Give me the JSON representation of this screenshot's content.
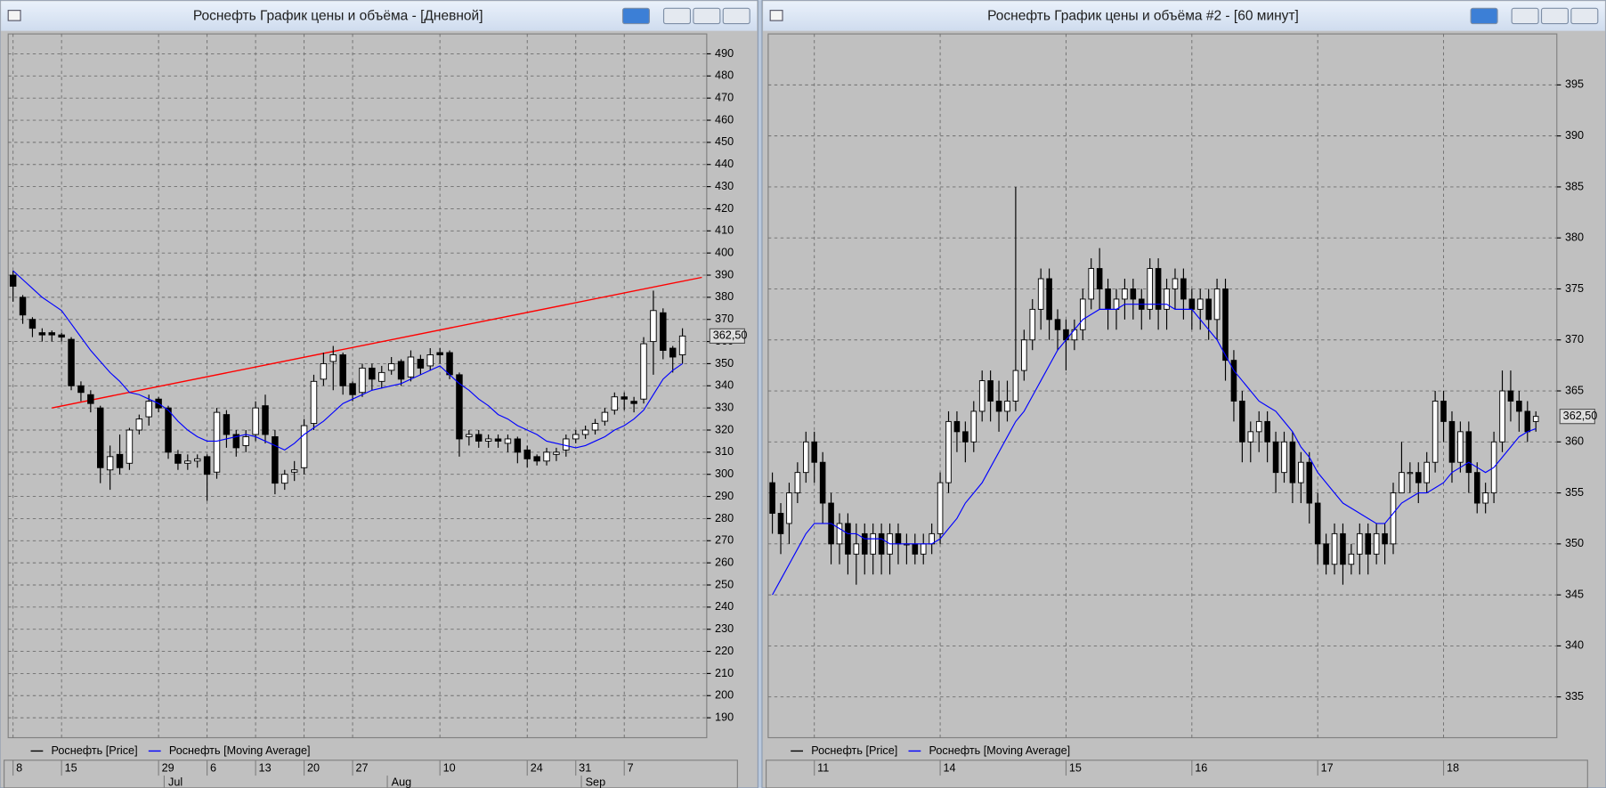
{
  "chart_data": [
    {
      "type": "candlestick",
      "title": "Роснефть График цены и объёма - [Дневной]",
      "categories": [
        "8",
        null,
        null,
        null,
        null,
        "15",
        null,
        null,
        null,
        null,
        null,
        null,
        null,
        null,
        null,
        "29",
        null,
        null,
        null,
        null,
        "6",
        null,
        null,
        null,
        null,
        "13",
        null,
        null,
        null,
        null,
        "20",
        null,
        null,
        null,
        null,
        "27",
        null,
        null,
        null,
        null,
        null,
        null,
        null,
        null,
        "10",
        null,
        null,
        null,
        null,
        null,
        null,
        null,
        null,
        "24",
        null,
        null,
        null,
        null,
        "31",
        null,
        null,
        null,
        null,
        "7",
        null,
        null,
        null,
        null,
        null,
        null
      ],
      "month_categories": [
        null,
        null,
        null,
        null,
        null,
        null,
        null,
        null,
        null,
        null,
        null,
        null,
        null,
        null,
        null,
        null,
        "Jul",
        null,
        null,
        null,
        null,
        null,
        null,
        null,
        null,
        null,
        null,
        null,
        null,
        null,
        null,
        null,
        null,
        null,
        null,
        null,
        null,
        null,
        null,
        "Aug",
        null,
        null,
        null,
        null,
        null,
        null,
        null,
        null,
        null,
        null,
        null,
        null,
        null,
        null,
        null,
        null,
        null,
        null,
        null,
        "Sep",
        null,
        null,
        null,
        null,
        null,
        null,
        null,
        null,
        null,
        null
      ],
      "series": [
        {
          "name": "Роснефть [Price]",
          "color": "#000000",
          "open": [
            390,
            380,
            370,
            364,
            364,
            363,
            361,
            340,
            336,
            330,
            302,
            309,
            305,
            320,
            326,
            334,
            330,
            309,
            305,
            306,
            308,
            301,
            327,
            318,
            313,
            318,
            331,
            317,
            296,
            301,
            303,
            323,
            343,
            351,
            354,
            341,
            337,
            348,
            342,
            347,
            351,
            344,
            352,
            349,
            355,
            355,
            345,
            317,
            318,
            315,
            316,
            314,
            316,
            311,
            308,
            306,
            309,
            311,
            316,
            318,
            320,
            324,
            329,
            335,
            333,
            334,
            360,
            373,
            357,
            354
          ],
          "high": [
            392,
            381,
            371,
            366,
            365,
            364,
            362,
            342,
            338,
            331,
            313,
            318,
            321,
            327,
            336,
            335,
            331,
            311,
            309,
            309,
            309,
            330,
            329,
            320,
            320,
            333,
            336,
            320,
            302,
            306,
            325,
            345,
            355,
            358,
            355,
            342,
            350,
            350,
            349,
            353,
            352,
            356,
            354,
            357,
            357,
            356,
            346,
            320,
            320,
            318,
            318,
            318,
            317,
            313,
            309,
            312,
            312,
            318,
            320,
            322,
            325,
            330,
            337,
            337,
            335,
            362,
            383,
            375,
            358,
            366
          ],
          "low": [
            378,
            368,
            362,
            360,
            360,
            360,
            338,
            333,
            328,
            296,
            293,
            300,
            302,
            318,
            322,
            328,
            307,
            302,
            302,
            303,
            288,
            298,
            312,
            308,
            310,
            315,
            314,
            291,
            293,
            297,
            300,
            320,
            340,
            338,
            336,
            333,
            335,
            338,
            339,
            345,
            340,
            342,
            345,
            347,
            350,
            343,
            308,
            313,
            312,
            312,
            312,
            310,
            305,
            303,
            304,
            304,
            306,
            308,
            314,
            316,
            318,
            322,
            327,
            329,
            328,
            332,
            345,
            352,
            346,
            350
          ],
          "close": [
            385,
            372,
            366,
            363,
            363,
            362,
            340,
            337,
            332,
            303,
            308,
            303,
            320,
            325,
            333,
            330,
            310,
            305,
            306,
            307,
            300,
            328,
            318,
            312,
            317,
            330,
            318,
            296,
            300,
            302,
            322,
            342,
            350,
            354,
            340,
            336,
            348,
            343,
            346,
            350,
            343,
            353,
            348,
            354,
            354,
            345,
            316,
            318,
            315,
            316,
            315,
            316,
            310,
            307,
            306,
            310,
            310,
            316,
            318,
            320,
            323,
            328,
            335,
            334,
            332,
            359,
            374,
            356,
            353,
            362.5
          ]
        },
        {
          "name": "Роснефть [Moving Average]",
          "color": "#0000ff",
          "values": [
            392,
            388,
            384,
            380,
            377,
            374,
            368,
            362,
            356,
            351,
            346,
            342,
            337,
            336,
            334,
            332,
            329,
            324,
            320,
            317,
            315,
            315,
            316,
            317,
            318,
            317,
            315,
            313,
            311,
            314,
            318,
            321,
            324,
            328,
            332,
            334,
            336,
            338,
            339,
            340,
            341,
            343,
            345,
            347,
            349,
            345,
            341,
            338,
            334,
            331,
            327,
            325,
            322,
            320,
            318,
            315,
            314,
            313,
            312,
            313,
            315,
            317,
            320,
            322,
            325,
            329,
            336,
            343,
            347,
            350
          ]
        }
      ],
      "trendline": {
        "color": "#ff0000",
        "x": [
          4,
          71
        ],
        "values": [
          330,
          389
        ]
      },
      "last_value": 362.5,
      "last_value_label": "362,50",
      "ylim": [
        181,
        499
      ],
      "yticks": [
        190,
        200,
        210,
        220,
        230,
        240,
        250,
        260,
        270,
        280,
        290,
        300,
        310,
        320,
        330,
        340,
        350,
        360,
        370,
        380,
        390,
        400,
        410,
        420,
        430,
        440,
        450,
        460,
        470,
        480,
        490
      ],
      "grid": true
    },
    {
      "type": "candlestick",
      "title": "Роснефть График цены и объёма #2 - [60 минут]",
      "categories": [
        null,
        null,
        null,
        null,
        null,
        "11",
        null,
        null,
        null,
        null,
        null,
        null,
        null,
        null,
        null,
        null,
        null,
        null,
        null,
        null,
        "14",
        null,
        null,
        null,
        null,
        null,
        null,
        null,
        null,
        null,
        null,
        null,
        null,
        null,
        null,
        "15",
        null,
        null,
        null,
        null,
        null,
        null,
        null,
        null,
        null,
        null,
        null,
        null,
        null,
        null,
        "16",
        null,
        null,
        null,
        null,
        null,
        null,
        null,
        null,
        null,
        null,
        null,
        null,
        null,
        null,
        "17",
        null,
        null,
        null,
        null,
        null,
        null,
        null,
        null,
        null,
        null,
        null,
        null,
        null,
        null,
        "18",
        null,
        null,
        null,
        null,
        null,
        null,
        null,
        null,
        null,
        null,
        null
      ],
      "series": [
        {
          "name": "Роснефть [Price]",
          "color": "#000000",
          "open": [
            356,
            353,
            352,
            355,
            357,
            360,
            358,
            354,
            350,
            352,
            349,
            351,
            349,
            351,
            349,
            351,
            350,
            350,
            349,
            350,
            351,
            356,
            362,
            361,
            360,
            363,
            366,
            364,
            363,
            364,
            367,
            370,
            373,
            376,
            372,
            371,
            370,
            371,
            374,
            377,
            375,
            373,
            374,
            375,
            374,
            373,
            377,
            373,
            375,
            376,
            374,
            373,
            374,
            372,
            375,
            368,
            364,
            360,
            361,
            362,
            360,
            357,
            360,
            356,
            358,
            354,
            350,
            348,
            351,
            348,
            349,
            351,
            349,
            351,
            350,
            355,
            357,
            357,
            356,
            358,
            364,
            362,
            358,
            361,
            357,
            354,
            355,
            360,
            365,
            364,
            363,
            362
          ],
          "high": [
            357,
            354,
            356,
            358,
            361,
            361,
            359,
            355,
            353,
            353,
            352,
            352,
            352,
            352,
            352,
            352,
            351,
            351,
            351,
            352,
            357,
            363,
            363,
            362,
            364,
            367,
            367,
            366,
            366,
            385,
            371,
            374,
            377,
            377,
            373,
            372,
            372,
            375,
            378,
            379,
            376,
            375,
            376,
            376,
            375,
            378,
            378,
            376,
            377,
            377,
            375,
            375,
            375,
            376,
            376,
            369,
            365,
            362,
            363,
            363,
            361,
            361,
            361,
            359,
            359,
            355,
            351,
            352,
            352,
            350,
            352,
            352,
            352,
            352,
            356,
            360,
            358,
            358,
            359,
            365,
            365,
            363,
            362,
            362,
            358,
            356,
            361,
            367,
            367,
            365,
            364,
            363
          ],
          "low": [
            351,
            349,
            350,
            354,
            356,
            356,
            352,
            348,
            348,
            347,
            346,
            347,
            347,
            347,
            347,
            348,
            348,
            348,
            348,
            349,
            350,
            355,
            359,
            358,
            359,
            362,
            362,
            361,
            362,
            363,
            366,
            369,
            371,
            370,
            369,
            367,
            369,
            370,
            373,
            373,
            371,
            371,
            372,
            372,
            371,
            372,
            371,
            371,
            373,
            372,
            371,
            371,
            370,
            370,
            366,
            362,
            358,
            358,
            359,
            358,
            355,
            356,
            354,
            354,
            352,
            348,
            347,
            347,
            346,
            347,
            347,
            347,
            348,
            348,
            349,
            355,
            355,
            354,
            355,
            357,
            360,
            356,
            357,
            355,
            353,
            353,
            354,
            359,
            362,
            361,
            360,
            361
          ],
          "close": [
            353,
            351,
            355,
            357,
            360,
            358,
            354,
            350,
            352,
            349,
            350,
            349,
            351,
            349,
            351,
            350,
            350,
            349,
            350,
            351,
            356,
            362,
            361,
            360,
            363,
            366,
            364,
            363,
            364,
            367,
            370,
            373,
            376,
            372,
            371,
            370,
            371,
            374,
            377,
            375,
            373,
            374,
            375,
            374,
            373,
            377,
            373,
            375,
            376,
            374,
            373,
            374,
            372,
            375,
            368,
            364,
            360,
            361,
            362,
            360,
            357,
            360,
            356,
            358,
            354,
            350,
            348,
            351,
            348,
            349,
            351,
            349,
            351,
            350,
            355,
            357,
            357,
            356,
            358,
            364,
            362,
            358,
            361,
            357,
            354,
            355,
            360,
            365,
            364,
            363,
            361,
            362.5
          ]
        },
        {
          "name": "Роснефть [Moving Average]",
          "color": "#0000ff",
          "values": [
            345,
            346.5,
            348,
            349.5,
            351,
            352,
            352,
            352,
            351.5,
            351,
            351,
            350.5,
            350.5,
            350.5,
            350,
            350,
            350,
            350,
            350,
            350,
            350.5,
            351.5,
            352.5,
            354,
            355,
            356,
            357.5,
            359,
            360.5,
            362,
            363,
            364.5,
            366,
            367.5,
            369,
            370,
            371,
            372,
            372.5,
            373,
            373,
            373,
            373.5,
            373.5,
            373.5,
            373.5,
            373.5,
            373.5,
            373,
            373,
            373,
            372,
            371,
            370,
            368.5,
            367,
            366,
            365,
            364,
            363.5,
            363,
            362,
            361,
            359.5,
            358.5,
            357,
            356,
            355,
            354,
            353.5,
            353,
            352.5,
            352,
            352,
            353,
            354,
            354.5,
            355,
            355,
            355.5,
            356,
            357,
            357.5,
            358,
            357.5,
            357,
            357.5,
            358.5,
            359.5,
            360.5,
            361,
            361.3
          ]
        }
      ],
      "last_value": 362.5,
      "last_value_label": "362,50",
      "ylim": [
        331,
        400
      ],
      "yticks": [
        335,
        340,
        345,
        350,
        355,
        360,
        365,
        370,
        375,
        380,
        385,
        390,
        395
      ],
      "grid": true
    }
  ]
}
